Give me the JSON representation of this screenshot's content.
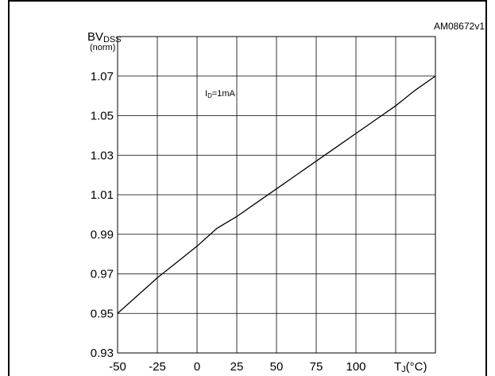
{
  "figure_code": "AM08672v1",
  "chart_data": {
    "type": "line",
    "title": "",
    "xlabel": "TJ(°C)",
    "xlabel_parts": {
      "main": "T",
      "sub": "J",
      "rest": "(°C)"
    },
    "ylabel_parts": {
      "main": "BV",
      "sub": "DSS"
    },
    "ylabel_note": "(norm)",
    "annotation_parts": {
      "main": "I",
      "sub": "D",
      "rest": "=1mA"
    },
    "x_ticks": [
      -50,
      -25,
      0,
      25,
      50,
      75,
      100
    ],
    "x_tick_labels": [
      "-50",
      "-25",
      "0",
      "25",
      "50",
      "75",
      "100"
    ],
    "y_ticks": [
      0.93,
      0.95,
      0.97,
      0.99,
      1.01,
      1.03,
      1.05,
      1.07
    ],
    "y_tick_labels": [
      "0.93",
      "0.95",
      "0.97",
      "0.99",
      "1.01",
      "1.03",
      "1.05",
      "1.07"
    ],
    "xlim": [
      -50,
      150
    ],
    "ylim": [
      0.93,
      1.09
    ],
    "grid": true,
    "series": [
      {
        "x": [
          -50,
          -37.5,
          -25,
          -12.5,
          0,
          12.5,
          25,
          37.5,
          50,
          62.5,
          75,
          87.5,
          100,
          112.5,
          125,
          137.5,
          150
        ],
        "y": [
          0.95,
          0.959,
          0.968,
          0.976,
          0.984,
          0.993,
          0.999,
          1.006,
          1.013,
          1.02,
          1.027,
          1.034,
          1.041,
          1.048,
          1.055,
          1.063,
          1.07
        ]
      }
    ]
  }
}
